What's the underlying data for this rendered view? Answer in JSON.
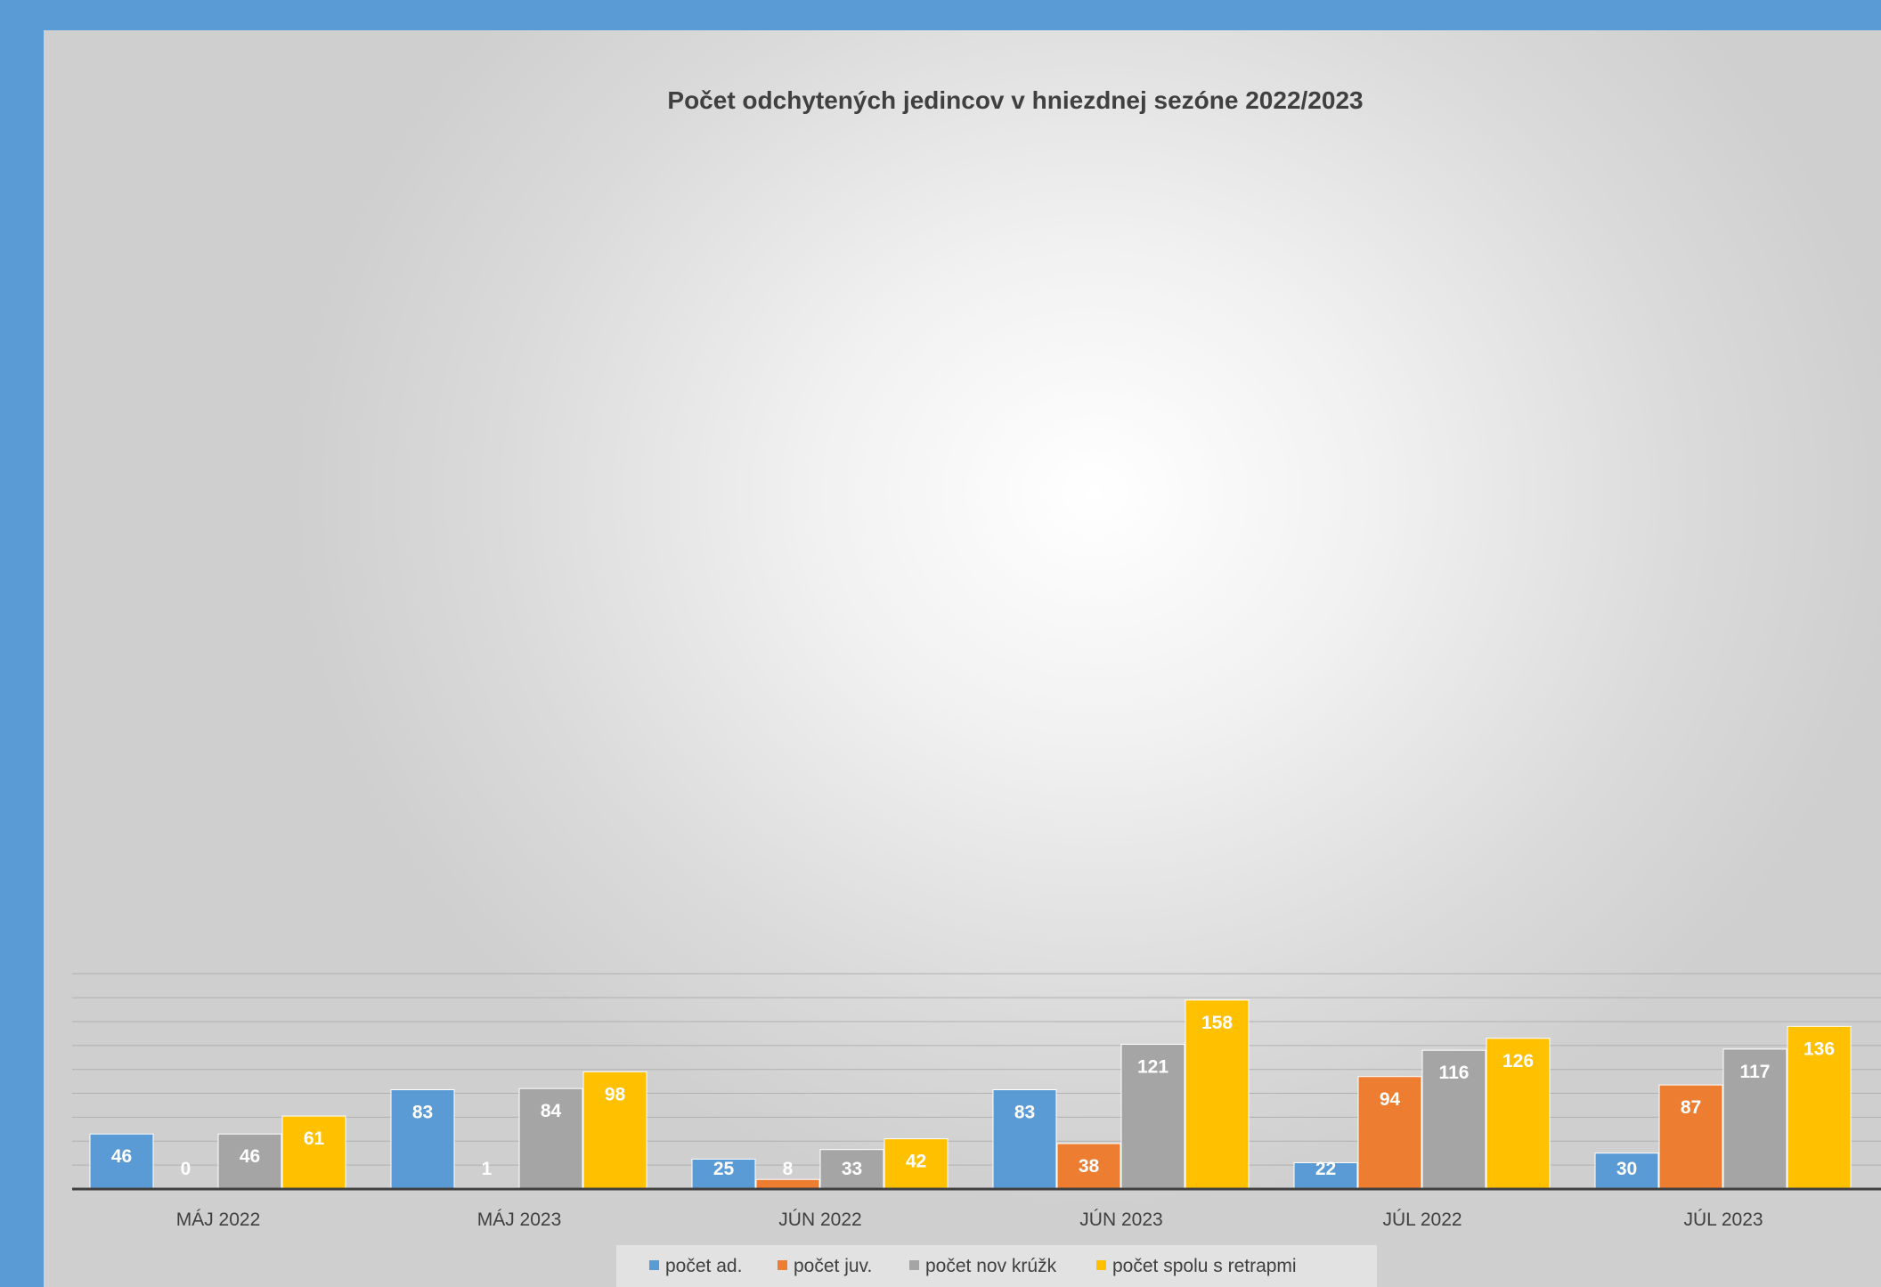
{
  "chart_data": {
    "type": "bar",
    "title": "Počet odchytených jedincov v hniezdnej sezóne 2022/2023",
    "xlabel": "",
    "ylabel": "",
    "ylim": [
      0,
      180
    ],
    "grid": true,
    "legend_position": "bottom",
    "categories": [
      "MÁJ 2022",
      "MÁJ 2023",
      "JÚN 2022",
      "JÚN 2023",
      "JÚL 2022",
      "JÚL 2023"
    ],
    "series": [
      {
        "name": "počet ad.",
        "color": "#5b9bd5",
        "values": [
          46,
          83,
          25,
          83,
          22,
          30
        ]
      },
      {
        "name": "počet juv.",
        "color": "#ed7d31",
        "values": [
          0,
          1,
          8,
          38,
          94,
          87
        ]
      },
      {
        "name": "počet nov krúžk",
        "color": "#a5a5a5",
        "values": [
          46,
          84,
          33,
          121,
          116,
          117
        ]
      },
      {
        "name": "počet spolu s retrapmi",
        "color": "#ffc000",
        "values": [
          61,
          98,
          42,
          158,
          126,
          136
        ]
      }
    ]
  }
}
